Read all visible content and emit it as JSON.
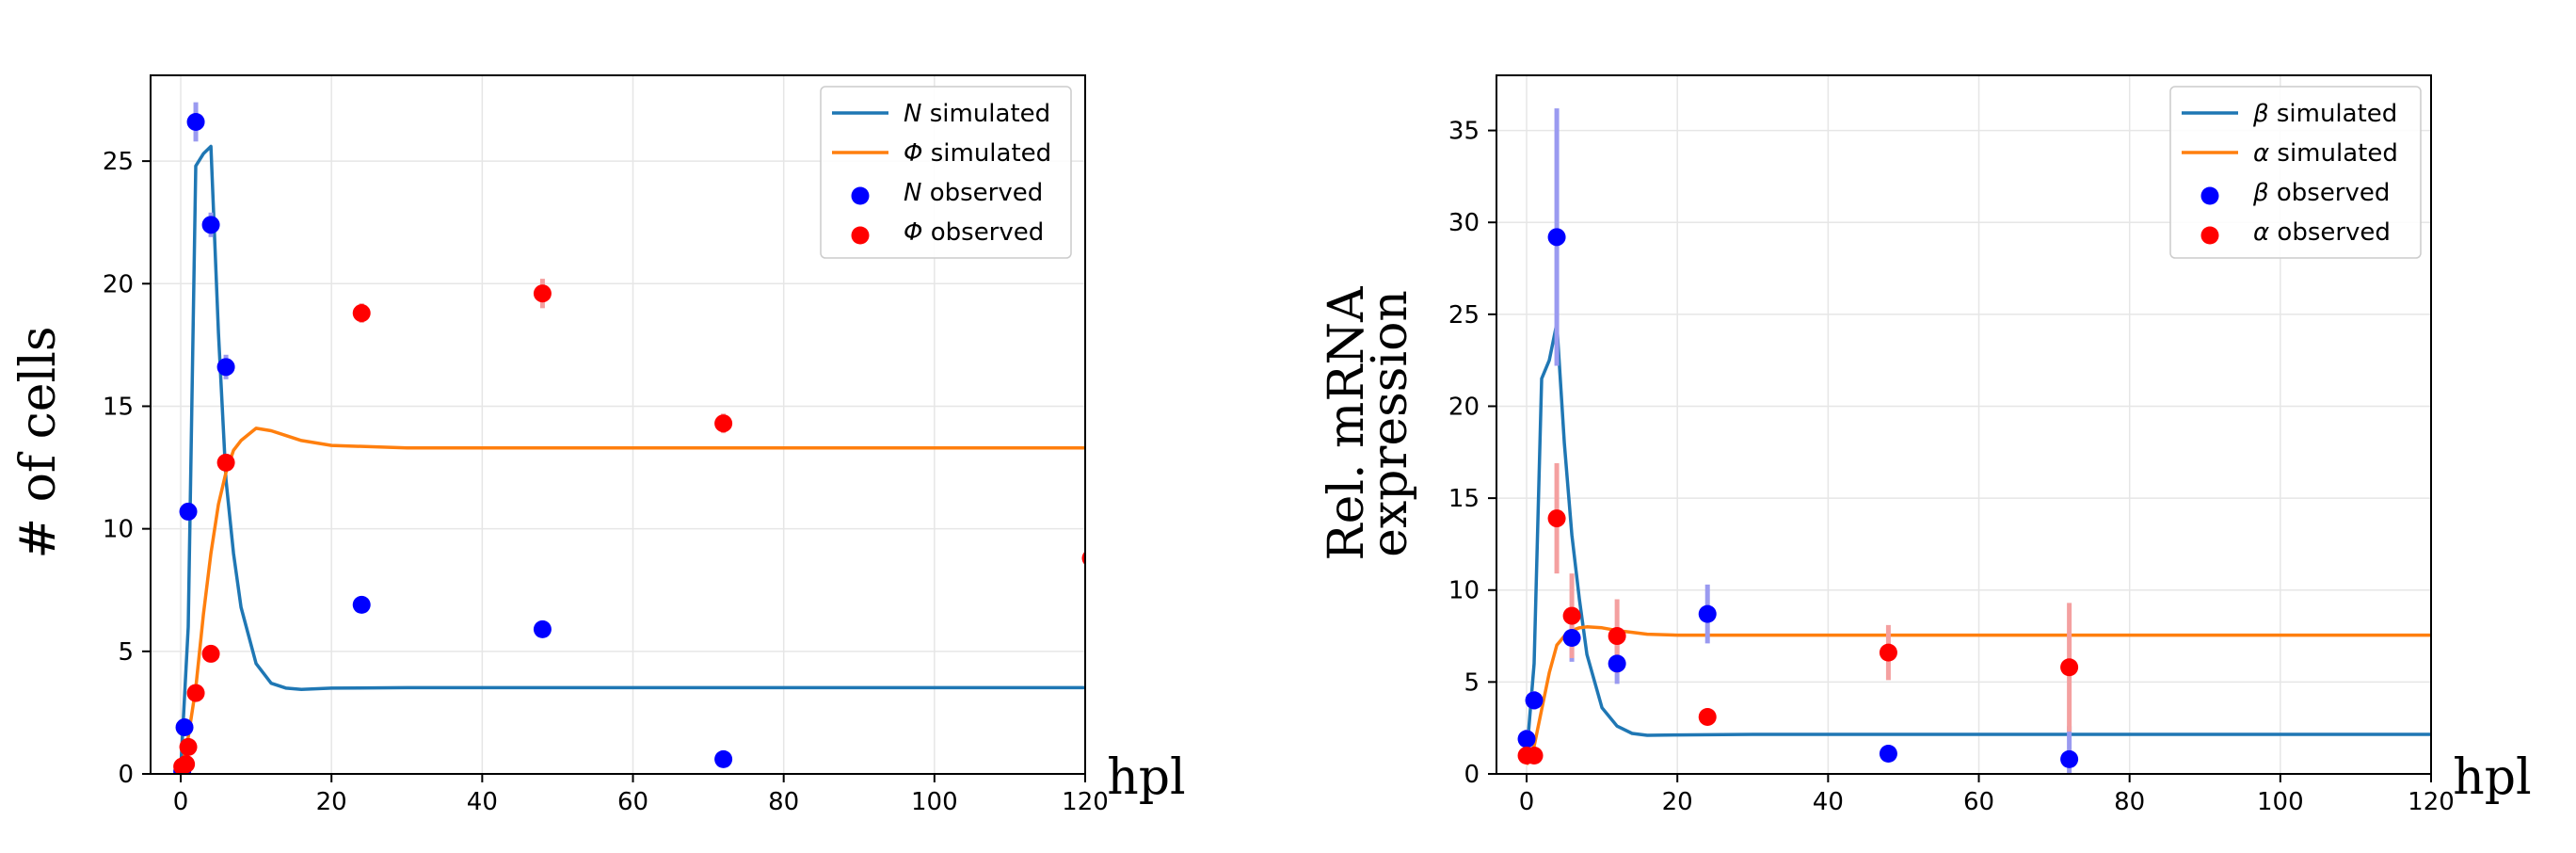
{
  "chart_data": [
    {
      "type": "line",
      "title": "",
      "xlabel": "hpl",
      "ylabel": "# of cells",
      "xlim": [
        -4,
        120
      ],
      "ylim": [
        0,
        28.5
      ],
      "xticks": [
        "0",
        "20",
        "40",
        "60",
        "80",
        "100",
        "120"
      ],
      "yticks": [
        "0",
        "5",
        "10",
        "15",
        "20",
        "25"
      ],
      "grid": true,
      "legend_position": "top-right",
      "legend": [
        {
          "kind": "line",
          "text_math": "N",
          "text": " simulated",
          "color": "#1f77b4"
        },
        {
          "kind": "line",
          "text_math": "Φ",
          "text": " simulated",
          "color": "#ff7f0e"
        },
        {
          "kind": "marker",
          "text_math": "N",
          "text": " observed",
          "color": "#0000ff"
        },
        {
          "kind": "marker",
          "text_math": "Φ",
          "text": " observed",
          "color": "#ff0000"
        }
      ],
      "series": [
        {
          "name": "N simulated",
          "kind": "line",
          "color": "#1f77b4",
          "x": [
            0,
            1,
            2,
            3,
            4,
            5,
            6,
            7,
            8,
            10,
            12,
            14,
            16,
            20,
            30,
            40,
            60,
            80,
            100,
            120
          ],
          "y": [
            0.2,
            6.0,
            24.8,
            25.3,
            25.6,
            18.0,
            12.0,
            9.0,
            6.8,
            4.5,
            3.7,
            3.5,
            3.45,
            3.5,
            3.52,
            3.52,
            3.52,
            3.52,
            3.52,
            3.52
          ]
        },
        {
          "name": "Φ simulated",
          "kind": "line",
          "color": "#ff7f0e",
          "x": [
            0,
            1,
            2,
            3,
            4,
            5,
            6,
            7,
            8,
            10,
            12,
            14,
            16,
            20,
            30,
            40,
            60,
            80,
            100,
            120
          ],
          "y": [
            0,
            1.5,
            3.5,
            6.5,
            9.0,
            11.0,
            12.3,
            13.2,
            13.6,
            14.1,
            14.0,
            13.8,
            13.6,
            13.4,
            13.3,
            13.3,
            13.3,
            13.3,
            13.3,
            13.3
          ]
        },
        {
          "name": "N observed",
          "kind": "scatter",
          "color": "#0000ff",
          "errcolor": "#9a9af0",
          "points": [
            {
              "x": 0.2,
              "y": 0.1,
              "err": 0
            },
            {
              "x": 0.5,
              "y": 1.9,
              "err": 0.3
            },
            {
              "x": 1,
              "y": 10.7,
              "err": 0.3
            },
            {
              "x": 2,
              "y": 26.6,
              "err": 0.8
            },
            {
              "x": 4,
              "y": 22.4,
              "err": 0.5
            },
            {
              "x": 6,
              "y": 16.6,
              "err": 0.5
            },
            {
              "x": 24,
              "y": 6.9,
              "err": 0.2
            },
            {
              "x": 48,
              "y": 5.9,
              "err": 0.2
            },
            {
              "x": 72,
              "y": 0.6,
              "err": 0.1
            }
          ]
        },
        {
          "name": "Φ observed",
          "kind": "scatter",
          "color": "#ff0000",
          "errcolor": "#f4a0a0",
          "points": [
            {
              "x": 0.2,
              "y": 0.3,
              "err": 0
            },
            {
              "x": 0.7,
              "y": 0.4,
              "err": 0
            },
            {
              "x": 1,
              "y": 1.1,
              "err": 0.2
            },
            {
              "x": 2,
              "y": 3.3,
              "err": 0.2
            },
            {
              "x": 4,
              "y": 4.9,
              "err": 0.2
            },
            {
              "x": 6,
              "y": 12.7,
              "err": 0.3
            },
            {
              "x": 24,
              "y": 18.8,
              "err": 0.4
            },
            {
              "x": 48,
              "y": 19.6,
              "err": 0.6
            },
            {
              "x": 72,
              "y": 14.3,
              "err": 0.4
            }
          ]
        }
      ]
    },
    {
      "type": "line",
      "title": "",
      "xlabel": "hpl",
      "ylabel": "Rel. mRNA",
      "ylabel_line2": "expression",
      "xlim": [
        -4,
        120
      ],
      "ylim": [
        0,
        38
      ],
      "xticks": [
        "0",
        "20",
        "40",
        "60",
        "80",
        "100",
        "120"
      ],
      "yticks": [
        "0",
        "5",
        "10",
        "15",
        "20",
        "25",
        "30",
        "35"
      ],
      "grid": true,
      "legend_position": "top-right",
      "legend": [
        {
          "kind": "line",
          "text_math": "β",
          "text": " simulated",
          "color": "#1f77b4"
        },
        {
          "kind": "line",
          "text_math": "α",
          "text": " simulated",
          "color": "#ff7f0e"
        },
        {
          "kind": "marker",
          "text_math": "β",
          "text": " observed",
          "color": "#0000ff"
        },
        {
          "kind": "marker",
          "text_math": "α",
          "text": " observed",
          "color": "#ff0000"
        }
      ],
      "series": [
        {
          "name": "β simulated",
          "kind": "line",
          "color": "#1f77b4",
          "x": [
            0,
            1,
            2,
            3,
            4,
            5,
            6,
            7,
            8,
            10,
            12,
            14,
            16,
            20,
            30,
            40,
            60,
            80,
            100,
            120
          ],
          "y": [
            1.0,
            6.0,
            21.5,
            22.5,
            24.5,
            18.0,
            13.0,
            9.5,
            6.5,
            3.6,
            2.6,
            2.2,
            2.1,
            2.12,
            2.15,
            2.15,
            2.15,
            2.15,
            2.15,
            2.15
          ]
        },
        {
          "name": "α simulated",
          "kind": "line",
          "color": "#ff7f0e",
          "x": [
            0,
            1,
            2,
            3,
            4,
            5,
            6,
            7,
            8,
            10,
            12,
            14,
            16,
            20,
            30,
            40,
            60,
            80,
            100,
            120
          ],
          "y": [
            0.5,
            1.5,
            3.5,
            5.5,
            7.0,
            7.5,
            7.8,
            7.95,
            8.0,
            7.95,
            7.8,
            7.7,
            7.6,
            7.55,
            7.55,
            7.55,
            7.55,
            7.55,
            7.55,
            7.55
          ]
        },
        {
          "name": "β observed",
          "kind": "scatter",
          "color": "#0000ff",
          "errcolor": "#9a9af0",
          "points": [
            {
              "x": 0,
              "y": 1.9,
              "err": 0.5
            },
            {
              "x": 1,
              "y": 4.0,
              "err": 0.5
            },
            {
              "x": 4,
              "y": 29.2,
              "err": 7.0
            },
            {
              "x": 6,
              "y": 7.4,
              "err": 1.3
            },
            {
              "x": 12,
              "y": 6.0,
              "err": 1.1
            },
            {
              "x": 24,
              "y": 8.7,
              "err": 1.6
            },
            {
              "x": 48,
              "y": 1.1,
              "err": 0.2
            },
            {
              "x": 72,
              "y": 0.8,
              "err": 1.8
            }
          ]
        },
        {
          "name": "α observed",
          "kind": "scatter",
          "color": "#ff0000",
          "errcolor": "#f4a0a0",
          "points": [
            {
              "x": 0,
              "y": 1.0,
              "err": 0.3
            },
            {
              "x": 1,
              "y": 1.0,
              "err": 0.3
            },
            {
              "x": 4,
              "y": 13.9,
              "err": 3.0
            },
            {
              "x": 6,
              "y": 8.6,
              "err": 2.3
            },
            {
              "x": 12,
              "y": 7.5,
              "err": 2.0
            },
            {
              "x": 24,
              "y": 3.1,
              "err": 0.4
            },
            {
              "x": 48,
              "y": 6.6,
              "err": 1.5
            },
            {
              "x": 72,
              "y": 5.8,
              "err": 3.5
            }
          ]
        }
      ]
    }
  ]
}
